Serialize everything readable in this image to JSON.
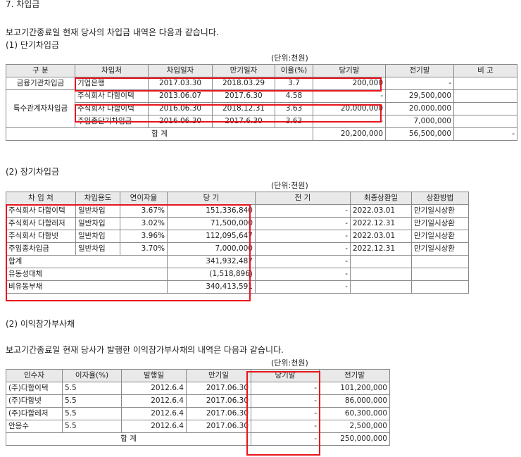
{
  "section_title": "7. 차입금",
  "intro": "보고기간종료일 현재 당사의 차입금 내역은 다음과 같습니다.",
  "short": {
    "title": "(1) 단기차입금",
    "unit": "(단위:천원)",
    "headers": [
      "구 분",
      "차입처",
      "차입일자",
      "만기일자",
      "이율(%)",
      "당기말",
      "전기말",
      "비 고"
    ],
    "group1": "금융기관차입금",
    "group2": "특수관계자차입금",
    "rows": [
      [
        "기업은행",
        "2017.03.30",
        "2018.03.29",
        "3.7",
        "200,000",
        "-",
        ""
      ],
      [
        "주식회사 다함이텍",
        "2013.06.07",
        "2017.6.30",
        "4.58",
        "-",
        "29,500,000",
        ""
      ],
      [
        "주식회사 다함이텍",
        "2016.06.30",
        "2018.12.31",
        "3.63",
        "20,000,000",
        "20,000,000",
        ""
      ],
      [
        "주임종단기차입금",
        "2016.06.30",
        "2017.6.30",
        "3.63",
        "-",
        "7,000,000",
        ""
      ]
    ],
    "total_label": "합 계",
    "total_current": "20,200,000",
    "total_prior": "56,500,000",
    "total_note": "-"
  },
  "long": {
    "title": "(2) 장기차입금",
    "unit": "(단위:천원)",
    "headers": [
      "차 입 처",
      "차입용도",
      "연이자율",
      "당 기",
      "전 기",
      "최종상환일",
      "상환방법"
    ],
    "rows": [
      [
        "주식회사 다함이텍",
        "일반차입",
        "3.67%",
        "151,336,840",
        "-",
        "2022.03.01",
        "만기일시상환"
      ],
      [
        "주식회사 다함레저",
        "일반차입",
        "3.02%",
        "71,500,000",
        "-",
        "2022.12.31",
        "만기일시상환"
      ],
      [
        "주식회사 다함넷",
        "일반차입",
        "3.96%",
        "112,095,647",
        "-",
        "2022.03.01",
        "만기일시상환"
      ],
      [
        "주임종차입금",
        "일반차입",
        "3.70%",
        "7,000,000",
        "-",
        "2022.12.31",
        "만기일시상환"
      ]
    ],
    "summary": [
      [
        "합계",
        "341,932,487",
        "-"
      ],
      [
        "유동성대체",
        "(1,518,896)",
        "-"
      ],
      [
        "비유동부채",
        "340,413,591",
        "-"
      ]
    ]
  },
  "bond": {
    "title": "(2) 이익참가부사채",
    "intro": "보고기간종료일 현재 당사가 발행한 이익참가부사채의 내역은 다음과 같습니다.",
    "unit": "(단위:천원)",
    "headers": [
      "인수자",
      "이자율(%)",
      "발행일",
      "만기일",
      "당기말",
      "전기말"
    ],
    "rows": [
      [
        "(주)다함이텍",
        "5.5",
        "2012.6.4",
        "2017.06.30",
        "-",
        "101,200,000"
      ],
      [
        "(주)다함넷",
        "5.5",
        "2012.6.4",
        "2017.06.30",
        "-",
        "86,000,000"
      ],
      [
        "(주)다함레저",
        "5.5",
        "2012.6.4",
        "2017.06.30",
        "-",
        "60,300,000"
      ],
      [
        "안응수",
        "5.5",
        "2012.6.4",
        "2017.06.30",
        "-",
        "2,500,000"
      ]
    ],
    "total_label": "합 계",
    "total_current": "-",
    "total_prior": "250,000,000"
  }
}
